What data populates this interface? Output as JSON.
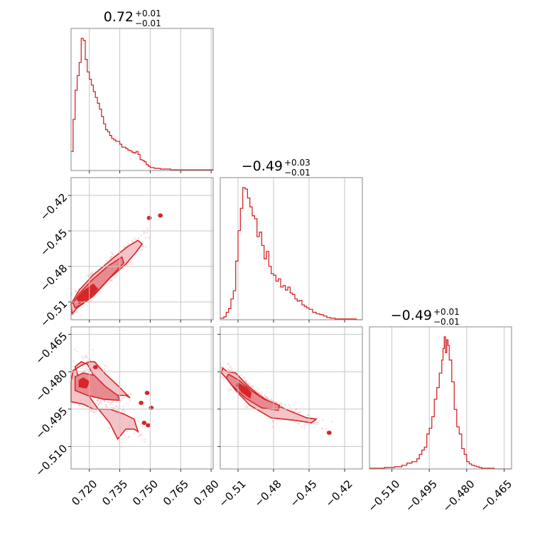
{
  "chart_data": {
    "type": "corner",
    "color": "#d62728",
    "grid": true,
    "parameters": [
      {
        "title": {
          "median": "0.72",
          "plus": "+0.01",
          "minus": "−0.01"
        },
        "range": [
          0.711,
          0.781
        ],
        "ticks": [
          "0.720",
          "0.735",
          "0.750",
          "0.765",
          "0.780"
        ],
        "hist_x": [
          0.711,
          0.712,
          0.713,
          0.714,
          0.715,
          0.716,
          0.717,
          0.718,
          0.719,
          0.72,
          0.721,
          0.722,
          0.723,
          0.724,
          0.725,
          0.726,
          0.727,
          0.728,
          0.729,
          0.73,
          0.731,
          0.732,
          0.733,
          0.734,
          0.735,
          0.736,
          0.737,
          0.738,
          0.739,
          0.74,
          0.741,
          0.742,
          0.743,
          0.744,
          0.745,
          0.746,
          0.747,
          0.748,
          0.749,
          0.75,
          0.752,
          0.755,
          0.76,
          0.77,
          0.781
        ],
        "hist_counts": [
          26,
          70,
          110,
          130,
          148,
          181,
          178,
          152,
          135,
          125,
          117,
          108,
          100,
          92,
          84,
          74,
          64,
          56,
          53,
          48,
          44,
          42,
          40,
          40,
          36,
          32,
          32,
          30,
          28,
          27,
          25,
          24,
          26,
          22,
          15,
          14,
          12,
          8,
          6,
          4,
          3,
          2,
          1,
          1
        ]
      },
      {
        "title": {
          "median": "−0.49",
          "plus": "+0.03",
          "minus": "−0.01"
        },
        "range": [
          -0.525,
          -0.405
        ],
        "ticks": [
          "−0.51",
          "−0.48",
          "−0.45",
          "−0.42"
        ],
        "hist_x": [
          -0.525,
          -0.522,
          -0.52,
          -0.518,
          -0.516,
          -0.514,
          -0.512,
          -0.51,
          -0.508,
          -0.506,
          -0.504,
          -0.502,
          -0.5,
          -0.498,
          -0.496,
          -0.494,
          -0.492,
          -0.49,
          -0.488,
          -0.486,
          -0.484,
          -0.482,
          -0.48,
          -0.478,
          -0.476,
          -0.474,
          -0.472,
          -0.47,
          -0.468,
          -0.466,
          -0.464,
          -0.462,
          -0.46,
          -0.458,
          -0.456,
          -0.454,
          -0.452,
          -0.45,
          -0.447,
          -0.444,
          -0.441,
          -0.438,
          -0.435,
          -0.432,
          -0.428,
          -0.424,
          -0.42,
          -0.415,
          -0.41,
          -0.405
        ],
        "hist_counts": [
          2,
          4,
          10,
          15,
          28,
          39,
          79,
          120,
          150,
          178,
          176,
          164,
          152,
          140,
          136,
          112,
          118,
          100,
          82,
          92,
          72,
          62,
          60,
          52,
          55,
          44,
          46,
          40,
          44,
          36,
          34,
          28,
          25,
          26,
          20,
          18,
          16,
          14,
          10,
          8,
          7,
          5,
          3,
          2,
          1,
          1,
          1,
          1,
          0
        ]
      },
      {
        "title": {
          "median": "−0.49",
          "plus": "+0.01",
          "minus": "−0.01"
        },
        "range": [
          -0.519,
          -0.462
        ],
        "ticks": [
          "−0.510",
          "−0.495",
          "−0.480",
          "−0.465"
        ],
        "hist_x": [
          -0.519,
          -0.513,
          -0.509,
          -0.506,
          -0.504,
          -0.502,
          -0.5,
          -0.499,
          -0.498,
          -0.497,
          -0.496,
          -0.495,
          -0.494,
          -0.493,
          -0.492,
          -0.491,
          -0.49,
          -0.4895,
          -0.489,
          -0.4885,
          -0.488,
          -0.4875,
          -0.487,
          -0.486,
          -0.485,
          -0.484,
          -0.483,
          -0.482,
          -0.481,
          -0.48,
          -0.479,
          -0.478,
          -0.477,
          -0.476,
          -0.475,
          -0.474,
          -0.472,
          -0.469,
          -0.462
        ],
        "hist_counts": [
          1,
          2,
          3,
          5,
          8,
          10,
          14,
          20,
          26,
          30,
          48,
          56,
          72,
          96,
          112,
          132,
          150,
          166,
          182,
          160,
          178,
          170,
          150,
          120,
          82,
          58,
          48,
          28,
          20,
          10,
          7,
          5,
          4,
          3,
          2,
          1,
          1,
          0
        ]
      }
    ],
    "pairs": [
      {
        "x_param": 0,
        "y_param": 1,
        "contours": [
          [
            [
              0.7115,
              -0.52
            ],
            [
              0.714,
              -0.515
            ],
            [
              0.722,
              -0.505
            ],
            [
              0.73,
              -0.49
            ],
            [
              0.738,
              -0.478
            ],
            [
              0.743,
              -0.468
            ],
            [
              0.746,
              -0.461
            ],
            [
              0.744,
              -0.458
            ],
            [
              0.739,
              -0.463
            ],
            [
              0.731,
              -0.474
            ],
            [
              0.722,
              -0.487
            ],
            [
              0.715,
              -0.5
            ],
            [
              0.711,
              -0.512
            ]
          ],
          [
            [
              0.713,
              -0.515
            ],
            [
              0.717,
              -0.511
            ],
            [
              0.725,
              -0.499
            ],
            [
              0.732,
              -0.486
            ],
            [
              0.737,
              -0.477
            ],
            [
              0.736,
              -0.472
            ],
            [
              0.729,
              -0.48
            ],
            [
              0.721,
              -0.492
            ],
            [
              0.715,
              -0.503
            ],
            [
              0.712,
              -0.511
            ]
          ],
          [
            [
              0.715,
              -0.511
            ],
            [
              0.719,
              -0.507
            ],
            [
              0.724,
              -0.499
            ],
            [
              0.722,
              -0.495
            ],
            [
              0.717,
              -0.501
            ],
            [
              0.714,
              -0.507
            ]
          ]
        ],
        "islands": [
          [
            0.7495,
            -0.439
          ],
          [
            0.755,
            -0.437
          ]
        ]
      },
      {
        "x_param": 0,
        "y_param": 2,
        "contours": [
          [
            [
              0.711,
              -0.492
            ],
            [
              0.717,
              -0.493
            ],
            [
              0.722,
              -0.495
            ],
            [
              0.73,
              -0.495
            ],
            [
              0.737,
              -0.497
            ],
            [
              0.742,
              -0.499
            ],
            [
              0.744,
              -0.504
            ],
            [
              0.742,
              -0.503
            ],
            [
              0.738,
              -0.503
            ],
            [
              0.734,
              -0.507
            ],
            [
              0.73,
              -0.5005
            ],
            [
              0.724,
              -0.4945
            ],
            [
              0.716,
              -0.4855
            ],
            [
              0.713,
              -0.478
            ],
            [
              0.716,
              -0.476
            ],
            [
              0.719,
              -0.477
            ],
            [
              0.7235,
              -0.4835
            ],
            [
              0.7275,
              -0.4875
            ],
            [
              0.733,
              -0.4895
            ],
            [
              0.738,
              -0.4895
            ],
            [
              0.74,
              -0.4905
            ],
            [
              0.734,
              -0.4855
            ],
            [
              0.728,
              -0.481
            ],
            [
              0.7225,
              -0.476
            ],
            [
              0.72,
              -0.476
            ],
            [
              0.716,
              -0.4775
            ],
            [
              0.712,
              -0.4795
            ],
            [
              0.711,
              -0.484
            ]
          ],
          [
            [
              0.713,
              -0.4875
            ],
            [
              0.719,
              -0.4895
            ],
            [
              0.727,
              -0.491
            ],
            [
              0.735,
              -0.4915
            ],
            [
              0.734,
              -0.4895
            ],
            [
              0.728,
              -0.486
            ],
            [
              0.7225,
              -0.4815
            ],
            [
              0.717,
              -0.4805
            ],
            [
              0.713,
              -0.482
            ]
          ],
          [
            [
              0.715,
              -0.486
            ],
            [
              0.7185,
              -0.4865
            ],
            [
              0.72,
              -0.484
            ],
            [
              0.717,
              -0.4825
            ],
            [
              0.715,
              -0.4835
            ]
          ]
        ],
        "islands": [
          [
            0.723,
            -0.4782
          ],
          [
            0.7485,
            -0.4885
          ],
          [
            0.7505,
            -0.4945
          ],
          [
            0.7455,
            -0.4925
          ],
          [
            0.747,
            -0.5005
          ],
          [
            0.749,
            -0.5015
          ]
        ]
      },
      {
        "x_param": 1,
        "y_param": 2,
        "contours": [
          [
            [
              -0.523,
              -0.4785
            ],
            [
              -0.519,
              -0.48
            ],
            [
              -0.512,
              -0.4805
            ],
            [
              -0.502,
              -0.4855
            ],
            [
              -0.492,
              -0.4895
            ],
            [
              -0.482,
              -0.4925
            ],
            [
              -0.465,
              -0.496
            ],
            [
              -0.452,
              -0.4985
            ],
            [
              -0.444,
              -0.499
            ],
            [
              -0.448,
              -0.5005
            ],
            [
              -0.462,
              -0.4995
            ],
            [
              -0.482,
              -0.4985
            ],
            [
              -0.5,
              -0.4935
            ],
            [
              -0.512,
              -0.4875
            ],
            [
              -0.52,
              -0.4825
            ],
            [
              -0.524,
              -0.4805
            ]
          ],
          [
            [
              -0.518,
              -0.481
            ],
            [
              -0.509,
              -0.4835
            ],
            [
              -0.499,
              -0.4875
            ],
            [
              -0.488,
              -0.491
            ],
            [
              -0.475,
              -0.4935
            ],
            [
              -0.476,
              -0.4955
            ],
            [
              -0.49,
              -0.4945
            ],
            [
              -0.504,
              -0.4905
            ],
            [
              -0.515,
              -0.4855
            ],
            [
              -0.52,
              -0.4825
            ]
          ],
          [
            [
              -0.51,
              -0.4845
            ],
            [
              -0.503,
              -0.4865
            ],
            [
              -0.499,
              -0.4885
            ],
            [
              -0.5,
              -0.4905
            ],
            [
              -0.507,
              -0.488
            ],
            [
              -0.511,
              -0.4855
            ]
          ]
        ],
        "islands": [
          [
            -0.433,
            -0.5045
          ]
        ]
      }
    ]
  }
}
